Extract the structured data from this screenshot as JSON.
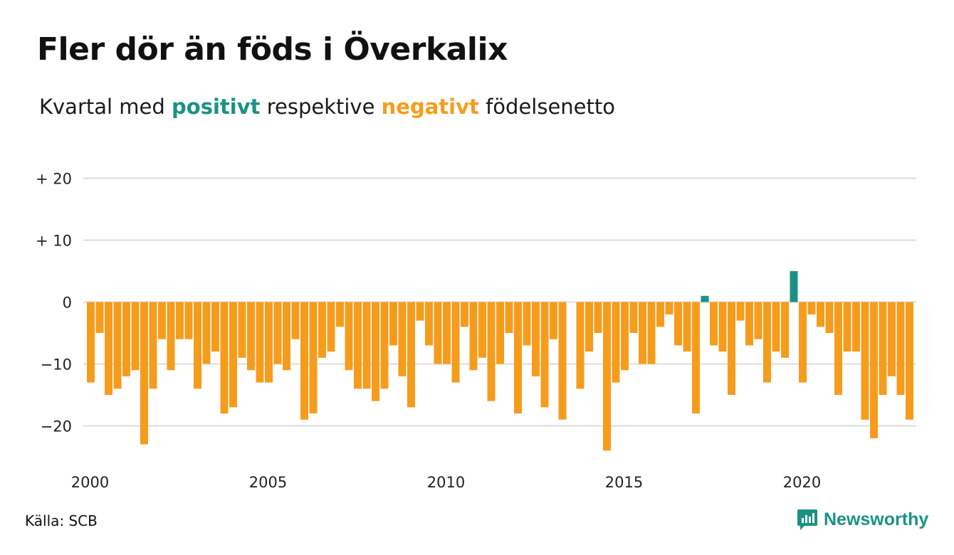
{
  "title": "Fler dör än föds i Överkalix",
  "subtitle": {
    "prefix": "Kvartal med ",
    "positive_word": "positivt",
    "middle": " respektive ",
    "negative_word": "negativt",
    "suffix": " födelsenetto"
  },
  "source": "Källa: SCB",
  "brand": {
    "name": "Newsworthy",
    "icon": "newsworthy-logo-icon"
  },
  "colors": {
    "positive": "#1a9283",
    "negative": "#f69c1c",
    "grid": "#dddddd",
    "text": "#111111"
  },
  "chart_data": {
    "type": "bar",
    "x_tick_labels": [
      "2000",
      "2005",
      "2010",
      "2015",
      "2020"
    ],
    "y_ticks": [
      {
        "value": 20,
        "label": "+ 20"
      },
      {
        "value": 10,
        "label": "+ 10"
      },
      {
        "value": 0,
        "label": "0"
      },
      {
        "value": -10,
        "label": "−10"
      },
      {
        "value": -20,
        "label": "−20"
      }
    ],
    "ylim": [
      -25,
      20
    ],
    "grid": true,
    "x_start": {
      "year": 2000,
      "quarter": 1
    },
    "values": [
      -13,
      -5,
      -15,
      -14,
      -12,
      -11,
      -23,
      -14,
      -6,
      -11,
      -6,
      -6,
      -14,
      -10,
      -8,
      -18,
      -17,
      -9,
      -11,
      -13,
      -13,
      -10,
      -11,
      -6,
      -19,
      -18,
      -9,
      -8,
      -4,
      -11,
      -14,
      -14,
      -16,
      -14,
      -7,
      -12,
      -17,
      -3,
      -7,
      -10,
      -10,
      -13,
      -4,
      -11,
      -9,
      -16,
      -10,
      -5,
      -18,
      -7,
      -12,
      -17,
      -6,
      -19,
      0,
      -14,
      -8,
      -5,
      -24,
      -13,
      -11,
      -5,
      -10,
      -10,
      -4,
      -2,
      -7,
      -8,
      -18,
      1,
      -7,
      -8,
      -15,
      -3,
      -7,
      -6,
      -13,
      -8,
      -9,
      5,
      -13,
      -2,
      -4,
      -5,
      -15,
      -8,
      -8,
      -19,
      -22,
      -15,
      -12,
      -15,
      -19
    ]
  }
}
